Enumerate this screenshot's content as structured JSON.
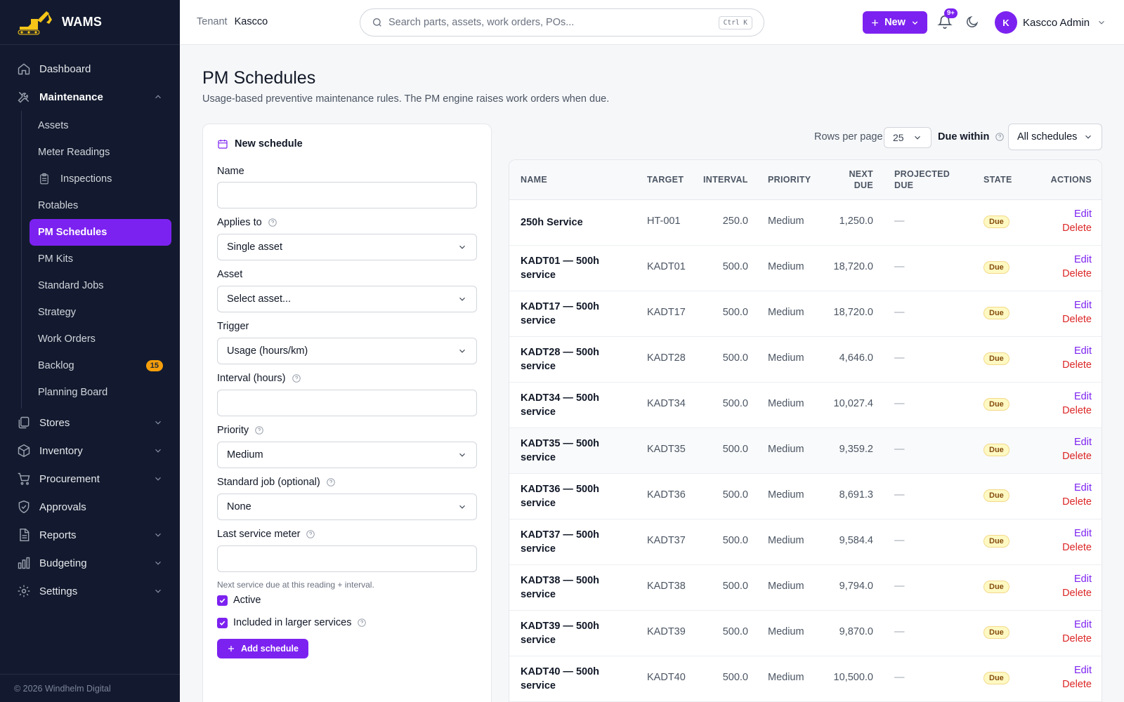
{
  "brand": {
    "name": "WAMS"
  },
  "sidebar": {
    "top_items": [
      {
        "label": "Dashboard",
        "icon": "home-icon"
      },
      {
        "label": "Maintenance",
        "icon": "tools-icon"
      },
      {
        "label": "Stores",
        "icon": "stores-icon"
      },
      {
        "label": "Inventory",
        "icon": "box-icon"
      },
      {
        "label": "Procurement",
        "icon": "cart-icon"
      },
      {
        "label": "Approvals",
        "icon": "shield-check-icon"
      },
      {
        "label": "Reports",
        "icon": "report-icon"
      },
      {
        "label": "Budgeting",
        "icon": "bar-chart-icon"
      },
      {
        "label": "Settings",
        "icon": "gear-icon"
      }
    ],
    "maintenance_items": [
      {
        "label": "Assets"
      },
      {
        "label": "Meter Readings"
      },
      {
        "label": "Inspections",
        "icon": "clipboard-icon"
      },
      {
        "label": "Rotables"
      },
      {
        "label": "PM Schedules",
        "active": true
      },
      {
        "label": "PM Kits"
      },
      {
        "label": "Standard Jobs"
      },
      {
        "label": "Strategy"
      },
      {
        "label": "Work Orders"
      },
      {
        "label": "Backlog",
        "badge": "15"
      },
      {
        "label": "Planning Board"
      }
    ],
    "footer": "© 2026 Windhelm Digital"
  },
  "header": {
    "tenant_label": "Tenant",
    "tenant_value": "Kascco",
    "search_placeholder": "Search parts, assets, work orders, POs...",
    "search_shortcut": "Ctrl K",
    "new_button": "New",
    "notification_badge": "9+",
    "avatar_initial": "K",
    "user_name": "Kascco Admin"
  },
  "page": {
    "title": "PM Schedules",
    "subtitle": "Usage-based preventive maintenance rules. The PM engine raises work orders when due."
  },
  "form": {
    "title": "New schedule",
    "name_label": "Name",
    "name_value": "",
    "applies_label": "Applies to",
    "applies_value": "Single asset",
    "asset_label": "Asset",
    "asset_value": "Select asset...",
    "trigger_label": "Trigger",
    "trigger_value": "Usage (hours/km)",
    "interval_label": "Interval (hours)",
    "interval_value": "",
    "priority_label": "Priority",
    "priority_value": "Medium",
    "stdjob_label": "Standard job (optional)",
    "stdjob_value": "None",
    "lastmeter_label": "Last service meter",
    "lastmeter_value": "",
    "lastmeter_hint": "Next service due at this reading + interval.",
    "active_label": "Active",
    "active_checked": true,
    "included_label": "Included in larger services",
    "included_checked": true,
    "submit_label": "Add schedule"
  },
  "filters": {
    "rows_label": "Rows per page",
    "rows_value": "25",
    "due_label": "Due within",
    "due_value": "All schedules"
  },
  "table": {
    "columns": {
      "name": "NAME",
      "target": "TARGET",
      "interval": "INTERVAL",
      "priority": "PRIORITY",
      "next_due_1": "NEXT",
      "next_due_2": "DUE",
      "projected_1": "PROJECTED",
      "projected_2": "DUE",
      "state": "STATE",
      "actions": "ACTIONS"
    },
    "edit_label": "Edit",
    "delete_label": "Delete",
    "rows": [
      {
        "name1": "250h Service",
        "name2": "",
        "target": "HT-001",
        "interval": "250.0",
        "priority": "Medium",
        "next_due": "1,250.0",
        "projected": "—",
        "state": "Due"
      },
      {
        "name1": "KADT01 — 500h",
        "name2": "service",
        "target": "KADT01",
        "interval": "500.0",
        "priority": "Medium",
        "next_due": "18,720.0",
        "projected": "—",
        "state": "Due"
      },
      {
        "name1": "KADT17 — 500h",
        "name2": "service",
        "target": "KADT17",
        "interval": "500.0",
        "priority": "Medium",
        "next_due": "18,720.0",
        "projected": "—",
        "state": "Due"
      },
      {
        "name1": "KADT28 — 500h",
        "name2": "service",
        "target": "KADT28",
        "interval": "500.0",
        "priority": "Medium",
        "next_due": "4,646.0",
        "projected": "—",
        "state": "Due"
      },
      {
        "name1": "KADT34 — 500h",
        "name2": "service",
        "target": "KADT34",
        "interval": "500.0",
        "priority": "Medium",
        "next_due": "10,027.4",
        "projected": "—",
        "state": "Due"
      },
      {
        "name1": "KADT35 — 500h",
        "name2": "service",
        "target": "KADT35",
        "interval": "500.0",
        "priority": "Medium",
        "next_due": "9,359.2",
        "projected": "—",
        "state": "Due"
      },
      {
        "name1": "KADT36 — 500h",
        "name2": "service",
        "target": "KADT36",
        "interval": "500.0",
        "priority": "Medium",
        "next_due": "8,691.3",
        "projected": "—",
        "state": "Due"
      },
      {
        "name1": "KADT37 — 500h",
        "name2": "service",
        "target": "KADT37",
        "interval": "500.0",
        "priority": "Medium",
        "next_due": "9,584.4",
        "projected": "—",
        "state": "Due"
      },
      {
        "name1": "KADT38 — 500h",
        "name2": "service",
        "target": "KADT38",
        "interval": "500.0",
        "priority": "Medium",
        "next_due": "9,794.0",
        "projected": "—",
        "state": "Due"
      },
      {
        "name1": "KADT39 — 500h",
        "name2": "service",
        "target": "KADT39",
        "interval": "500.0",
        "priority": "Medium",
        "next_due": "9,870.0",
        "projected": "—",
        "state": "Due"
      },
      {
        "name1": "KADT40 — 500h",
        "name2": "service",
        "target": "KADT40",
        "interval": "500.0",
        "priority": "Medium",
        "next_due": "10,500.0",
        "projected": "—",
        "state": "Due"
      }
    ]
  }
}
